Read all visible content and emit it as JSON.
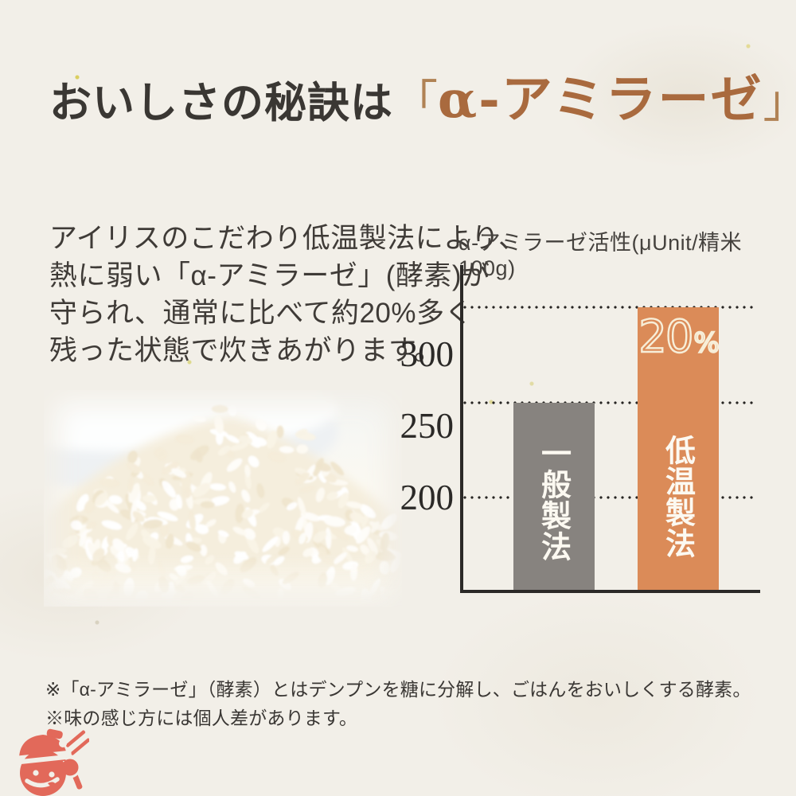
{
  "page": {
    "background": "#f2efe8"
  },
  "headline": {
    "plain": "おいしさの秘訣は",
    "bracket_open": "「",
    "accent": "α-アミラーゼ",
    "bracket_close": "」",
    "plain_color": "#3a3733",
    "accent_color": "#a96a3e"
  },
  "intro": {
    "lines": [
      "アイリスのこだわり低温製法により、",
      "熱に弱い「α-アミラーゼ」(酵素)が",
      "守られ、通常に比べて約20%多く",
      "残った状態で炊きあがります。"
    ]
  },
  "chart": {
    "title": "α-アミラーゼ活性(μUnit/精米100g)",
    "y_ticks": [
      {
        "label": "300",
        "value": 300
      },
      {
        "label": "250",
        "value": 250
      },
      {
        "label": "200",
        "value": 200
      }
    ],
    "gridline_values": [
      333,
      266,
      200
    ],
    "badge": {
      "number": "20",
      "unit": "%"
    },
    "axis_color": "#2b2927"
  },
  "chart_data": {
    "type": "bar",
    "title": "α-アミラーゼ活性(μUnit/精米100g)",
    "categories": [
      "一般製法",
      "低温製法"
    ],
    "values": [
      266,
      333
    ],
    "bar_colors": [
      "#87837f",
      "#db8b58"
    ],
    "label_color": "#fcf9f1",
    "y_ticks": [
      200,
      250,
      300
    ],
    "ylim": [
      133,
      365
    ],
    "grid": "dotted horizontal lines at 200 and at each bar top",
    "legend": "none",
    "annotations": [
      {
        "target": "低温製法",
        "text": "20%"
      }
    ]
  },
  "footnotes": [
    "※「α-アミラーゼ」（酵素）とはデンプンを糖に分解し、ごはんをおいしくする酵素。",
    "※味の感じ方には個人差があります。"
  ],
  "mascot": {
    "name": "rice-pot-mascot",
    "color": "#e2695a"
  }
}
